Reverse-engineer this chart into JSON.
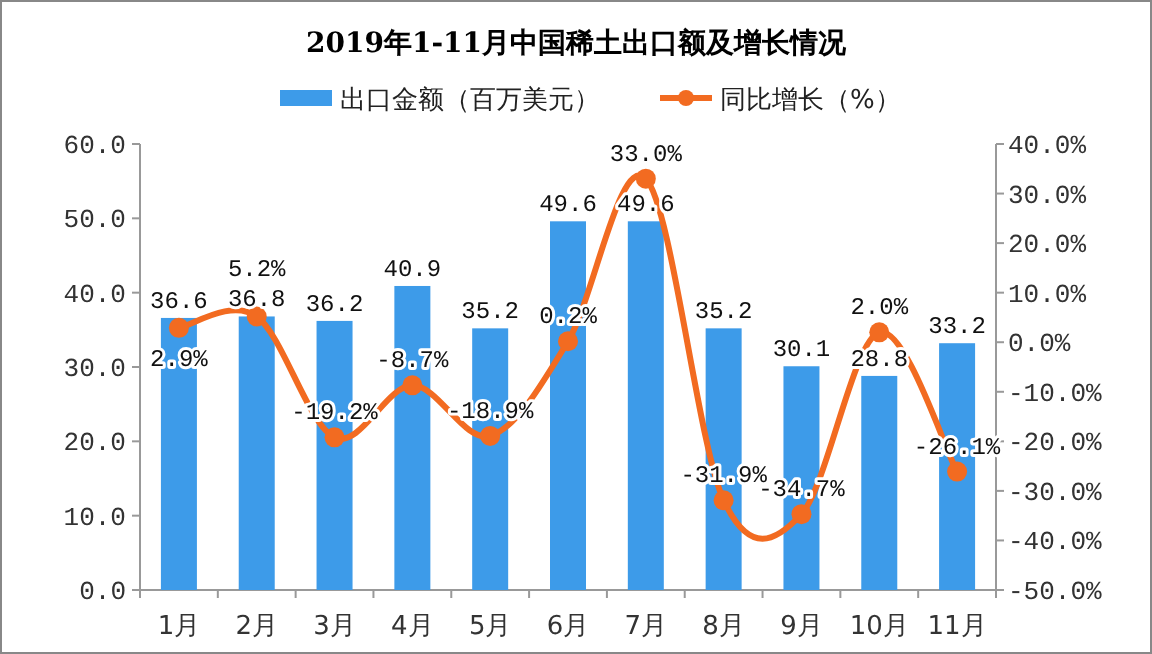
{
  "chart_data": {
    "type": "bar",
    "title": "2019年1-11月中国稀土出口额及增长情况",
    "categories": [
      "1月",
      "2月",
      "3月",
      "4月",
      "5月",
      "6月",
      "7月",
      "8月",
      "9月",
      "10月",
      "11月"
    ],
    "series": [
      {
        "name": "出口金额（百万美元）",
        "color": "#3d9be9",
        "values": [
          36.6,
          36.8,
          36.2,
          40.9,
          35.2,
          49.6,
          49.6,
          35.2,
          30.1,
          28.8,
          33.2
        ],
        "value_labels": [
          "36.6",
          "36.8",
          "36.2",
          "40.9",
          "35.2",
          "49.6",
          "49.6",
          "35.2",
          "30.1",
          "28.8",
          "33.2"
        ]
      },
      {
        "name": "同比增长（%）",
        "type": "line",
        "axis": "y2",
        "color": "#f26b21",
        "marker": "circle",
        "values": [
          2.9,
          5.2,
          -19.2,
          -8.7,
          -18.9,
          0.2,
          33.0,
          -31.9,
          -34.7,
          2.0,
          -26.1
        ],
        "value_labels": [
          "2.9%",
          "5.2%",
          "-19.2%",
          "-8.7%",
          "-18.9%",
          "0.2%",
          "33.0%",
          "-31.9%",
          "-34.7%",
          "2.0%",
          "-26.1%"
        ]
      }
    ],
    "ylim": [
      0,
      60
    ],
    "yticks": [
      {
        "value": 0,
        "label": "0.0"
      },
      {
        "value": 10,
        "label": "10.0"
      },
      {
        "value": 20,
        "label": "20.0"
      },
      {
        "value": 30,
        "label": "30.0"
      },
      {
        "value": 40,
        "label": "40.0"
      },
      {
        "value": 50,
        "label": "50.0"
      },
      {
        "value": 60,
        "label": "60.0"
      }
    ],
    "y2lim": [
      -50,
      40
    ],
    "y2ticks": [
      {
        "value": -50,
        "label": "-50.0%"
      },
      {
        "value": -40,
        "label": "-40.0%"
      },
      {
        "value": -30,
        "label": "-30.0%"
      },
      {
        "value": -20,
        "label": "-20.0%"
      },
      {
        "value": -10,
        "label": "-10.0%"
      },
      {
        "value": 0,
        "label": "0.0%"
      },
      {
        "value": 10,
        "label": "10.0%"
      },
      {
        "value": 20,
        "label": "20.0%"
      },
      {
        "value": 30,
        "label": "30.0%"
      },
      {
        "value": 40,
        "label": "40.0%"
      }
    ],
    "legend": "top"
  }
}
